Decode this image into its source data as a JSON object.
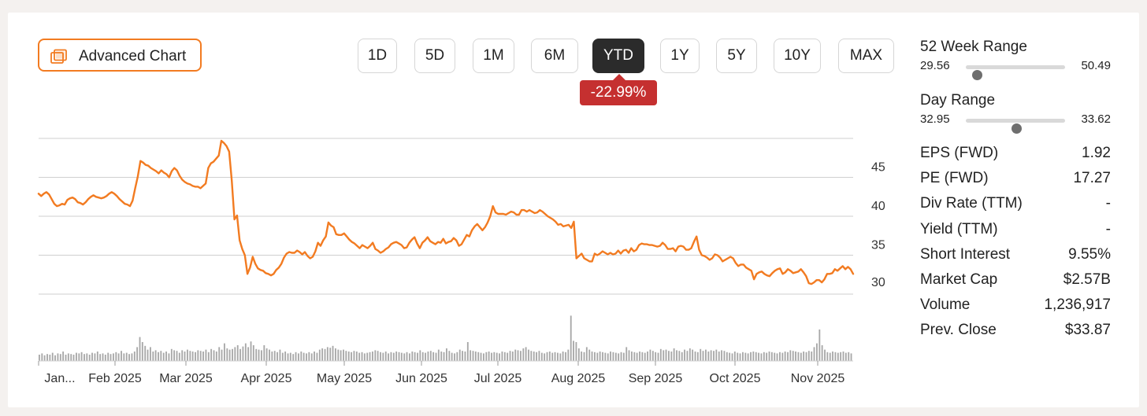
{
  "toolbar": {
    "advanced_chart_label": "Advanced Chart",
    "ranges": [
      "1D",
      "5D",
      "1M",
      "6M",
      "YTD",
      "1Y",
      "5Y",
      "10Y",
      "MAX"
    ],
    "active_range": "YTD",
    "change_badge": "-22.99%",
    "change_color": "#c53030"
  },
  "stats": {
    "week52": {
      "title": "52 Week Range",
      "low": "29.56",
      "high": "50.49",
      "position": 0.11
    },
    "day": {
      "title": "Day Range",
      "low": "32.95",
      "high": "33.62",
      "position": 0.51
    },
    "rows": [
      {
        "label": "EPS (FWD)",
        "value": "1.92"
      },
      {
        "label": "PE (FWD)",
        "value": "17.27"
      },
      {
        "label": "Div Rate (TTM)",
        "value": "-"
      },
      {
        "label": "Yield (TTM)",
        "value": "-"
      },
      {
        "label": "Short Interest",
        "value": "9.55%"
      },
      {
        "label": "Market Cap",
        "value": "$2.57B"
      },
      {
        "label": "Volume",
        "value": "1,236,917"
      },
      {
        "label": "Prev. Close",
        "value": "$33.87"
      }
    ]
  },
  "chart_data": {
    "type": "line",
    "line_color": "#f27b21",
    "volume_color": "#a8a8a8",
    "ylim": [
      30,
      50
    ],
    "yticks": [
      30,
      35,
      40,
      45
    ],
    "x_labels": [
      "Jan...",
      "Feb 2025",
      "Mar 2025",
      "Apr 2025",
      "May 2025",
      "Jun 2025",
      "Jul 2025",
      "Aug 2025",
      "Sep 2025",
      "Oct 2025",
      "Nov 2025"
    ],
    "grid": true,
    "series": [
      {
        "values": [
          42.9,
          42.6,
          42.9,
          43.1,
          42.8,
          42.2,
          41.6,
          41.3,
          41.4,
          41.6,
          41.5,
          42.1,
          42.3,
          42.4,
          42.2,
          41.8,
          41.7,
          41.5,
          41.8,
          42.2,
          42.5,
          42.7,
          42.5,
          42.4,
          42.3,
          42.4,
          42.6,
          42.9,
          43.1,
          42.9,
          42.6,
          42.2,
          41.9,
          41.6,
          41.5,
          41.3,
          42.0,
          43.6,
          45.1,
          47.1,
          46.9,
          46.6,
          46.5,
          46.2,
          46.0,
          45.8,
          45.5,
          45.9,
          45.6,
          45.4,
          45.0,
          45.8,
          46.2,
          45.9,
          45.2,
          44.7,
          44.4,
          44.2,
          44.1,
          43.9,
          43.8,
          43.8,
          43.6,
          43.9,
          44.2,
          46.2,
          46.8,
          47.0,
          47.4,
          47.8,
          49.7,
          49.4,
          49.0,
          48.3,
          44.6,
          39.6,
          40.1,
          36.9,
          35.8,
          35.0,
          32.6,
          33.4,
          34.8,
          33.9,
          33.3,
          33.1,
          33.0,
          32.7,
          32.6,
          32.4,
          32.6,
          33.1,
          33.4,
          33.9,
          34.7,
          35.2,
          35.4,
          35.3,
          35.3,
          35.6,
          35.4,
          35.1,
          35.4,
          34.9,
          34.6,
          34.8,
          35.5,
          36.6,
          36.2,
          36.9,
          37.4,
          39.2,
          38.8,
          38.6,
          37.7,
          37.6,
          37.6,
          37.8,
          37.4,
          37.0,
          36.7,
          36.5,
          36.2,
          35.9,
          36.3,
          36.1,
          35.9,
          36.2,
          36.6,
          35.8,
          35.6,
          35.3,
          35.5,
          35.8,
          36.0,
          36.4,
          36.6,
          36.7,
          36.5,
          36.3,
          35.9,
          36.0,
          36.6,
          37.0,
          37.3,
          36.5,
          35.9,
          36.6,
          36.9,
          37.3,
          36.8,
          36.6,
          36.4,
          36.7,
          36.6,
          37.1,
          36.5,
          36.7,
          36.8,
          37.2,
          36.9,
          36.2,
          36.4,
          37.0,
          37.6,
          37.4,
          38.2,
          38.7,
          39.0,
          38.6,
          38.2,
          38.6,
          39.2,
          40.0,
          41.3,
          40.5,
          40.3,
          40.3,
          40.3,
          40.2,
          40.4,
          40.6,
          40.5,
          40.2,
          40.2,
          40.8,
          40.8,
          40.6,
          40.8,
          40.6,
          40.4,
          40.5,
          40.8,
          40.6,
          40.3,
          40.0,
          39.8,
          39.6,
          39.3,
          38.9,
          39.0,
          38.7,
          38.8,
          38.9,
          38.5,
          39.3,
          34.6,
          34.9,
          35.2,
          34.6,
          34.4,
          34.2,
          34.2,
          35.2,
          35.0,
          35.2,
          35.5,
          35.3,
          35.1,
          35.3,
          35.1,
          35.2,
          35.6,
          35.2,
          35.6,
          35.7,
          35.3,
          35.9,
          35.5,
          35.7,
          36.3,
          36.5,
          36.4,
          36.4,
          36.3,
          36.3,
          36.2,
          36.1,
          36.2,
          36.6,
          36.3,
          35.8,
          35.8,
          35.9,
          35.5,
          36.1,
          36.2,
          36.1,
          35.7,
          35.7,
          35.9,
          36.7,
          37.4,
          35.7,
          35.0,
          34.9,
          34.7,
          34.4,
          34.6,
          35.1,
          35.0,
          34.7,
          34.2,
          34.4,
          34.6,
          34.8,
          34.6,
          34.0,
          33.6,
          33.8,
          33.8,
          33.4,
          33.2,
          33.0,
          31.9,
          32.6,
          32.8,
          32.9,
          32.6,
          32.4,
          32.3,
          32.7,
          33.0,
          33.2,
          33.3,
          32.6,
          32.8,
          33.2,
          33.0,
          32.7,
          32.8,
          32.9,
          33.2,
          32.8,
          32.3,
          31.4,
          31.3,
          31.5,
          31.8,
          31.8,
          31.5,
          31.9,
          32.6,
          32.6,
          32.7,
          33.2,
          33.0,
          33.3,
          33.6,
          33.2,
          33.5,
          33.2,
          32.6
        ]
      }
    ],
    "volume": [
      0.1,
      0.12,
      0.09,
      0.11,
      0.1,
      0.13,
      0.09,
      0.12,
      0.11,
      0.15,
      0.1,
      0.12,
      0.11,
      0.1,
      0.13,
      0.12,
      0.14,
      0.11,
      0.12,
      0.1,
      0.13,
      0.12,
      0.15,
      0.11,
      0.12,
      0.1,
      0.13,
      0.11,
      0.12,
      0.14,
      0.12,
      0.16,
      0.12,
      0.13,
      0.11,
      0.12,
      0.15,
      0.22,
      0.38,
      0.3,
      0.24,
      0.18,
      0.22,
      0.15,
      0.17,
      0.14,
      0.16,
      0.13,
      0.15,
      0.12,
      0.19,
      0.17,
      0.16,
      0.13,
      0.17,
      0.15,
      0.18,
      0.16,
      0.15,
      0.14,
      0.17,
      0.16,
      0.15,
      0.18,
      0.14,
      0.19,
      0.17,
      0.15,
      0.22,
      0.18,
      0.28,
      0.2,
      0.18,
      0.19,
      0.22,
      0.25,
      0.19,
      0.23,
      0.28,
      0.22,
      0.31,
      0.25,
      0.19,
      0.18,
      0.17,
      0.25,
      0.2,
      0.18,
      0.15,
      0.16,
      0.14,
      0.18,
      0.13,
      0.15,
      0.12,
      0.13,
      0.11,
      0.14,
      0.12,
      0.15,
      0.13,
      0.12,
      0.14,
      0.12,
      0.15,
      0.13,
      0.18,
      0.2,
      0.19,
      0.22,
      0.21,
      0.24,
      0.2,
      0.18,
      0.17,
      0.18,
      0.16,
      0.15,
      0.14,
      0.16,
      0.15,
      0.13,
      0.14,
      0.12,
      0.13,
      0.14,
      0.15,
      0.17,
      0.16,
      0.14,
      0.13,
      0.15,
      0.12,
      0.14,
      0.13,
      0.15,
      0.14,
      0.13,
      0.12,
      0.14,
      0.12,
      0.15,
      0.14,
      0.13,
      0.17,
      0.14,
      0.13,
      0.15,
      0.16,
      0.14,
      0.13,
      0.18,
      0.15,
      0.14,
      0.2,
      0.16,
      0.13,
      0.12,
      0.14,
      0.18,
      0.16,
      0.15,
      0.3,
      0.17,
      0.16,
      0.15,
      0.14,
      0.13,
      0.12,
      0.14,
      0.15,
      0.13,
      0.14,
      0.13,
      0.12,
      0.15,
      0.14,
      0.13,
      0.16,
      0.15,
      0.18,
      0.17,
      0.16,
      0.2,
      0.22,
      0.18,
      0.16,
      0.15,
      0.14,
      0.16,
      0.13,
      0.12,
      0.14,
      0.15,
      0.13,
      0.14,
      0.13,
      0.12,
      0.15,
      0.14,
      0.18,
      0.72,
      0.32,
      0.3,
      0.2,
      0.15,
      0.14,
      0.22,
      0.18,
      0.15,
      0.14,
      0.13,
      0.15,
      0.14,
      0.13,
      0.12,
      0.15,
      0.14,
      0.13,
      0.12,
      0.14,
      0.13,
      0.22,
      0.17,
      0.15,
      0.14,
      0.13,
      0.15,
      0.14,
      0.13,
      0.15,
      0.18,
      0.16,
      0.14,
      0.13,
      0.19,
      0.17,
      0.18,
      0.16,
      0.15,
      0.2,
      0.17,
      0.16,
      0.14,
      0.18,
      0.16,
      0.2,
      0.18,
      0.15,
      0.14,
      0.19,
      0.16,
      0.18,
      0.15,
      0.17,
      0.16,
      0.18,
      0.15,
      0.17,
      0.16,
      0.14,
      0.13,
      0.12,
      0.15,
      0.13,
      0.12,
      0.14,
      0.13,
      0.12,
      0.14,
      0.15,
      0.14,
      0.13,
      0.12,
      0.14,
      0.13,
      0.15,
      0.14,
      0.13,
      0.12,
      0.14,
      0.13,
      0.15,
      0.14,
      0.17,
      0.16,
      0.15,
      0.14,
      0.13,
      0.15,
      0.14,
      0.16,
      0.15,
      0.22,
      0.28,
      0.5,
      0.25,
      0.18,
      0.14,
      0.13,
      0.15,
      0.14,
      0.13,
      0.14,
      0.15,
      0.13,
      0.14,
      0.12
    ]
  }
}
